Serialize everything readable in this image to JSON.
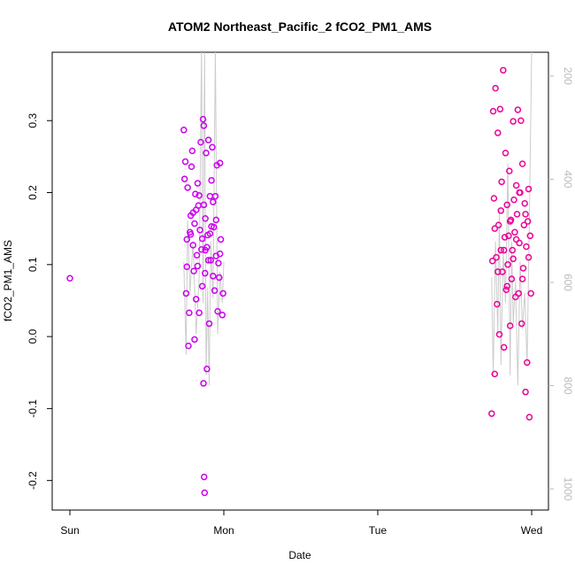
{
  "chart_data": {
    "type": "scatter",
    "title": "ATOM2 Northeast_Pacific_2 fCO2_PM1_AMS",
    "x_label": "Date",
    "y_label": "fCO2_PM1_AMS",
    "xlim": [
      -0.115,
      3.109
    ],
    "xticks": [
      {
        "value": 0,
        "label": "Sun"
      },
      {
        "value": 1,
        "label": "Mon"
      },
      {
        "value": 2,
        "label": "Tue"
      },
      {
        "value": 3,
        "label": "Wed"
      }
    ],
    "ylim": [
      -0.241,
      0.395
    ],
    "yticks": [
      -0.2,
      -0.1,
      {
        "value": 0,
        "label": "0.0"
      },
      0.1,
      0.2,
      0.3
    ],
    "y2lim": [
      1041,
      154
    ],
    "y2ticks": [
      200,
      400,
      600,
      800,
      1000
    ],
    "y2_color": "#bbbbbb",
    "series": [
      {
        "color": "#cc00ee",
        "x": [
          0.0,
          0.74,
          0.745,
          0.75,
          0.755,
          0.76,
          0.765,
          0.77,
          0.775,
          0.78,
          0.785,
          0.79,
          0.795,
          0.8,
          0.805,
          0.81,
          0.815,
          0.82,
          0.825,
          0.83,
          0.835,
          0.84,
          0.845,
          0.85,
          0.855,
          0.86,
          0.865,
          0.868,
          0.87,
          0.872,
          0.875,
          0.878,
          0.88,
          0.885,
          0.89,
          0.895,
          0.9,
          0.905,
          0.91,
          0.915,
          0.92,
          0.925,
          0.93,
          0.935,
          0.94,
          0.945,
          0.95,
          0.955,
          0.96,
          0.965,
          0.97,
          0.975,
          0.98,
          0.99,
          0.995,
          0.785,
          0.8,
          0.82,
          0.84,
          0.86,
          0.88,
          0.9,
          0.92,
          0.76,
          0.81,
          0.83,
          0.87,
          0.89,
          0.91,
          0.93,
          0.95,
          0.975
        ],
        "values": [
          0.081,
          0.287,
          0.219,
          0.243,
          0.06,
          0.097,
          0.207,
          -0.013,
          0.033,
          0.145,
          0.168,
          0.236,
          0.258,
          0.127,
          0.091,
          -0.004,
          0.198,
          0.052,
          0.113,
          0.213,
          0.182,
          0.033,
          0.148,
          0.27,
          0.121,
          0.07,
          0.302,
          -0.065,
          0.293,
          -0.195,
          -0.217,
          0.088,
          0.164,
          0.255,
          -0.045,
          0.141,
          0.273,
          0.018,
          0.195,
          0.106,
          0.217,
          0.263,
          0.084,
          0.152,
          0.064,
          0.195,
          0.112,
          0.238,
          0.035,
          0.102,
          0.082,
          0.241,
          0.135,
          0.03,
          0.06,
          0.142,
          0.172,
          0.176,
          0.196,
          0.136,
          0.12,
          0.106,
          0.153,
          0.135,
          0.157,
          0.098,
          0.183,
          0.124,
          0.143,
          0.187,
          0.162,
          0.115
        ]
      },
      {
        "color": "#ee0099",
        "x": [
          2.74,
          2.745,
          2.75,
          2.755,
          2.76,
          2.765,
          2.77,
          2.775,
          2.78,
          2.785,
          2.79,
          2.795,
          2.8,
          2.805,
          2.81,
          2.815,
          2.82,
          2.825,
          2.83,
          2.835,
          2.84,
          2.845,
          2.85,
          2.855,
          2.86,
          2.865,
          2.87,
          2.875,
          2.88,
          2.885,
          2.89,
          2.895,
          2.9,
          2.905,
          2.91,
          2.915,
          2.92,
          2.925,
          2.93,
          2.935,
          2.94,
          2.945,
          2.95,
          2.955,
          2.96,
          2.965,
          2.97,
          2.975,
          2.98,
          2.985,
          2.99,
          2.995,
          2.76,
          2.78,
          2.8,
          2.82,
          2.84,
          2.86,
          2.88,
          2.9,
          2.92,
          2.94,
          2.96,
          2.98
        ],
        "values": [
          -0.107,
          0.105,
          0.313,
          0.192,
          -0.052,
          0.345,
          0.11,
          0.045,
          0.283,
          0.155,
          0.003,
          0.316,
          0.12,
          0.215,
          0.09,
          0.37,
          -0.015,
          0.138,
          0.255,
          0.065,
          0.183,
          0.1,
          0.14,
          0.23,
          0.015,
          0.162,
          0.08,
          0.12,
          0.299,
          0.19,
          0.145,
          0.055,
          0.21,
          0.17,
          0.315,
          0.06,
          0.13,
          0.2,
          0.3,
          0.018,
          0.24,
          0.095,
          0.155,
          0.185,
          -0.077,
          0.125,
          -0.036,
          0.16,
          0.205,
          -0.112,
          0.14,
          0.06,
          0.15,
          0.09,
          0.175,
          0.12,
          0.07,
          0.16,
          0.108,
          0.135,
          0.2,
          0.08,
          0.17,
          0.11
        ]
      },
      {
        "color": "#cccccc",
        "axis": "y2",
        "x": [
          0.74,
          0.755,
          0.765,
          0.78,
          0.8,
          0.82,
          0.84,
          0.855,
          0.865,
          0.875,
          0.885,
          0.895,
          0.905,
          0.915,
          0.93,
          0.945,
          0.96,
          0.975,
          0.99,
          1.0,
          1.5,
          2.74,
          2.75,
          2.765,
          2.78,
          2.79,
          2.8,
          2.815,
          2.83,
          2.845,
          2.86,
          2.87,
          2.88,
          2.895,
          2.91,
          2.925,
          2.94,
          2.955,
          2.97,
          2.985,
          3.0
        ],
        "values": [
          560,
          740,
          480,
          620,
          520,
          700,
          590,
          150,
          640,
          150,
          780,
          610,
          800,
          520,
          630,
          150,
          700,
          580,
          640,
          560,
          null,
          590,
          780,
          520,
          700,
          460,
          760,
          540,
          640,
          370,
          780,
          520,
          680,
          600,
          800,
          560,
          690,
          620,
          760,
          480,
          150
        ]
      }
    ]
  }
}
